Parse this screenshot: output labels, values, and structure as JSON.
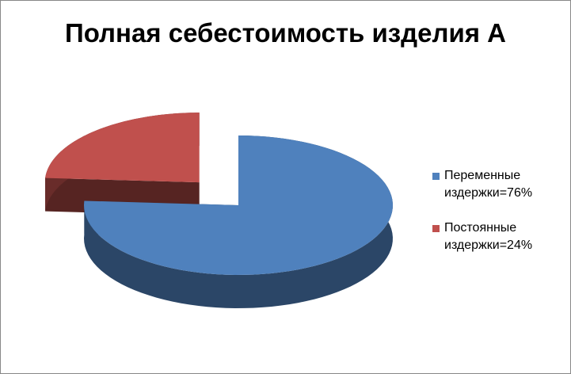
{
  "chart_data": {
    "type": "pie3d",
    "title": "Полная себестоимость изделия А",
    "categories": [
      "Переменные издержки=76%",
      "Постоянные издержки=24%"
    ],
    "values": [
      76,
      24
    ],
    "colors": [
      "#4f81bd",
      "#c0504d"
    ],
    "exploded": [
      false,
      true
    ]
  }
}
